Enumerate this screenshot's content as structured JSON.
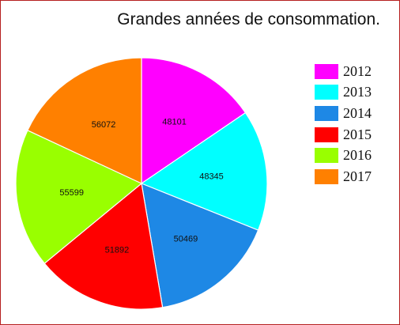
{
  "chart_data": {
    "type": "pie",
    "title": "Grandes années de consommation.",
    "categories": [
      "2012",
      "2013",
      "2014",
      "2015",
      "2016",
      "2017"
    ],
    "values": [
      48101,
      48345,
      50469,
      51892,
      55599,
      56072
    ],
    "colors": [
      "#ff00ff",
      "#00ffff",
      "#1e88e5",
      "#ff0000",
      "#99ff00",
      "#ff8000"
    ],
    "legend_position": "right",
    "start_angle": "top, clockwise"
  }
}
